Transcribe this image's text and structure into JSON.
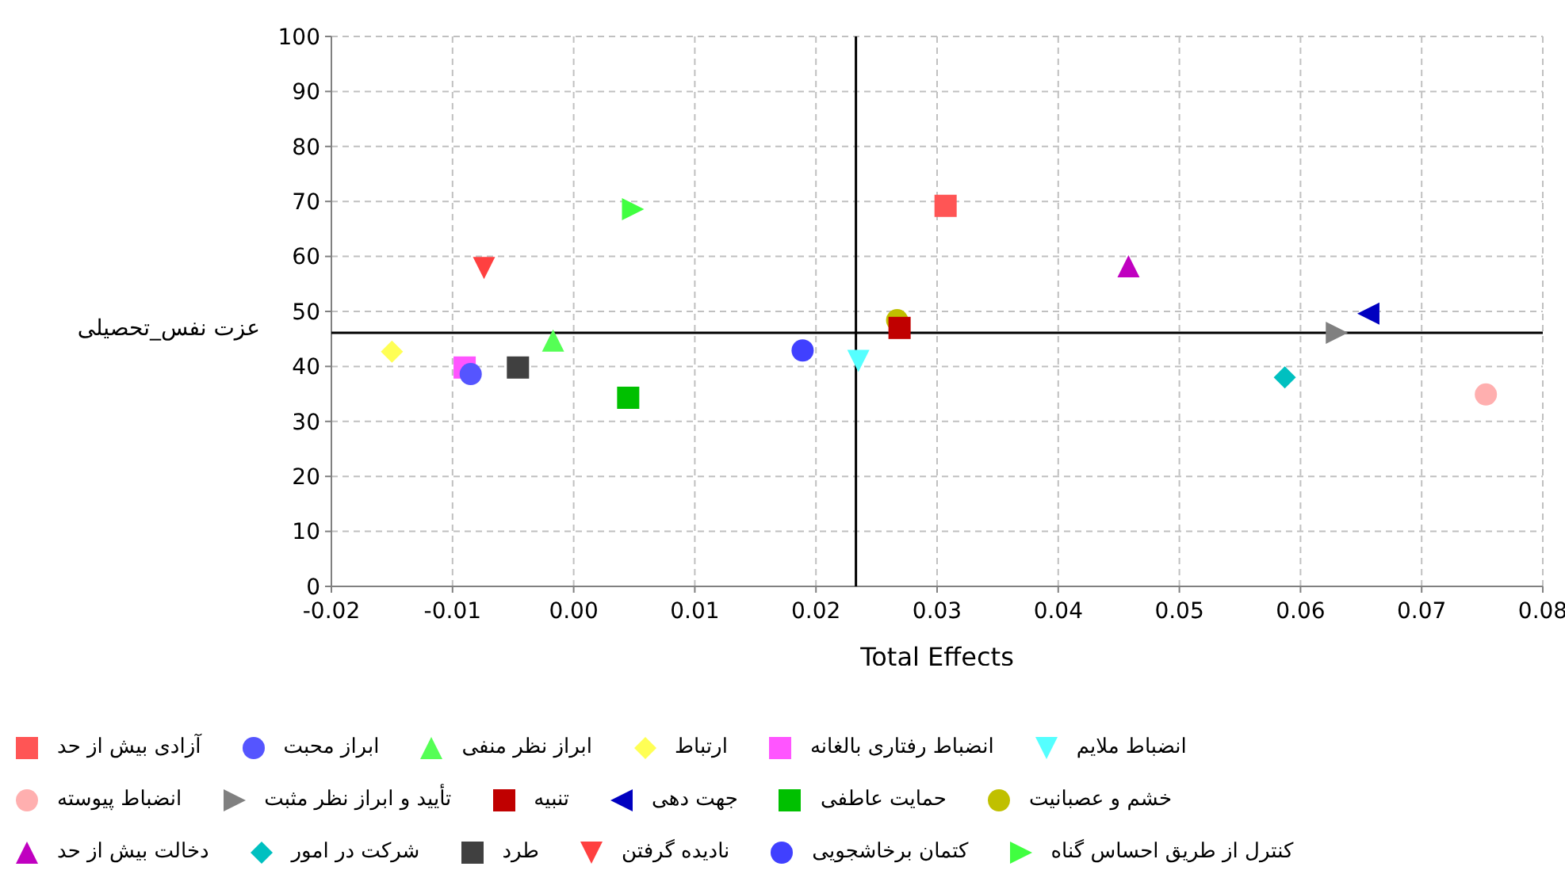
{
  "chart_data": {
    "type": "scatter",
    "xlabel": "Total Effects",
    "ylabel": "عزت نفس_تحصیلی",
    "xlim": [
      -0.02,
      0.08
    ],
    "xticks": [
      {
        "value": -0.02,
        "label": "-0.02"
      },
      {
        "value": -0.01,
        "label": "-0.01"
      },
      {
        "value": 0,
        "label": "0.00"
      },
      {
        "value": 0.01,
        "label": "0.01"
      },
      {
        "value": 0.02,
        "label": "0.02"
      },
      {
        "value": 0.03,
        "label": "0.03"
      },
      {
        "value": 0.04,
        "label": "0.04"
      },
      {
        "value": 0.05,
        "label": "0.05"
      },
      {
        "value": 0.06,
        "label": "0.06"
      },
      {
        "value": 0.07,
        "label": "0.07"
      },
      {
        "value": 0.08,
        "label": "0.08"
      }
    ],
    "ylim": [
      0,
      100
    ],
    "yticks": [
      0,
      10,
      20,
      30,
      40,
      50,
      60,
      70,
      80,
      90,
      100
    ],
    "grid": true,
    "legend": "bottom",
    "ref_lines": [
      {
        "axis": "x",
        "value": 0.0233,
        "color": "#000000"
      },
      {
        "axis": "y",
        "value": 46.1,
        "color": "#000000"
      }
    ],
    "series": [
      {
        "name": "آزادی بیش از حد",
        "color": "#ff5555",
        "marker": "square",
        "x": [
          0.0307
        ],
        "values": [
          69.2
        ]
      },
      {
        "name": "ابراز محبت",
        "color": "#5555ff",
        "marker": "circle",
        "x": [
          -0.0085
        ],
        "values": [
          38.6
        ]
      },
      {
        "name": "ابراز نظر منفی",
        "color": "#55ff55",
        "marker": "triangle",
        "x": [
          -0.0017
        ],
        "values": [
          44.7
        ]
      },
      {
        "name": "ارتباط",
        "color": "#ffff55",
        "marker": "diamond",
        "x": [
          -0.015
        ],
        "values": [
          42.7
        ]
      },
      {
        "name": "انضباط رفتاری بالغانه",
        "color": "#ff55ff",
        "marker": "square",
        "x": [
          -0.009
        ],
        "values": [
          39.8
        ]
      },
      {
        "name": "انضباط ملایم",
        "color": "#55ffff",
        "marker": "triangle-down",
        "x": [
          0.0235
        ],
        "values": [
          41
        ]
      },
      {
        "name": "انضباط پیوسته",
        "color": "#ffafaf",
        "marker": "circle",
        "x": [
          0.0753
        ],
        "values": [
          34.9
        ]
      },
      {
        "name": "تأیید و ابراز نظر مثبت",
        "color": "#808080",
        "marker": "triangle-right",
        "x": [
          0.063
        ],
        "values": [
          46.1
        ]
      },
      {
        "name": "تنبیه",
        "color": "#c00000",
        "marker": "square",
        "x": [
          0.0269
        ],
        "values": [
          47
        ]
      },
      {
        "name": "جهت دهی",
        "color": "#0000c0",
        "marker": "triangle-left",
        "x": [
          0.0656
        ],
        "values": [
          49.6
        ]
      },
      {
        "name": "حمایت عاطفی",
        "color": "#00c000",
        "marker": "square",
        "x": [
          0.0045
        ],
        "values": [
          34.3
        ]
      },
      {
        "name": "خشم و عصبانیت",
        "color": "#c0c000",
        "marker": "circle",
        "x": [
          0.0267
        ],
        "values": [
          48.4
        ]
      },
      {
        "name": "دخالت بیش از حد",
        "color": "#c000c0",
        "marker": "triangle",
        "x": [
          0.0458
        ],
        "values": [
          58.2
        ]
      },
      {
        "name": "شرکت در امور",
        "color": "#00c0c0",
        "marker": "diamond",
        "x": [
          0.0587
        ],
        "values": [
          38
        ]
      },
      {
        "name": "طرد",
        "color": "#404040",
        "marker": "square",
        "x": [
          -0.0046
        ],
        "values": [
          39.8
        ]
      },
      {
        "name": "نادیده گرفتن",
        "color": "#ff4040",
        "marker": "triangle-down",
        "x": [
          -0.0074
        ],
        "values": [
          57.9
        ]
      },
      {
        "name": "کتمان برخاشجویی",
        "color": "#4040ff",
        "marker": "circle",
        "x": [
          0.0189
        ],
        "values": [
          42.9
        ]
      },
      {
        "name": "کنترل از طریق احساس گناه",
        "color": "#40ff40",
        "marker": "triangle-right",
        "x": [
          0.0049
        ],
        "values": [
          68.6
        ]
      }
    ]
  }
}
